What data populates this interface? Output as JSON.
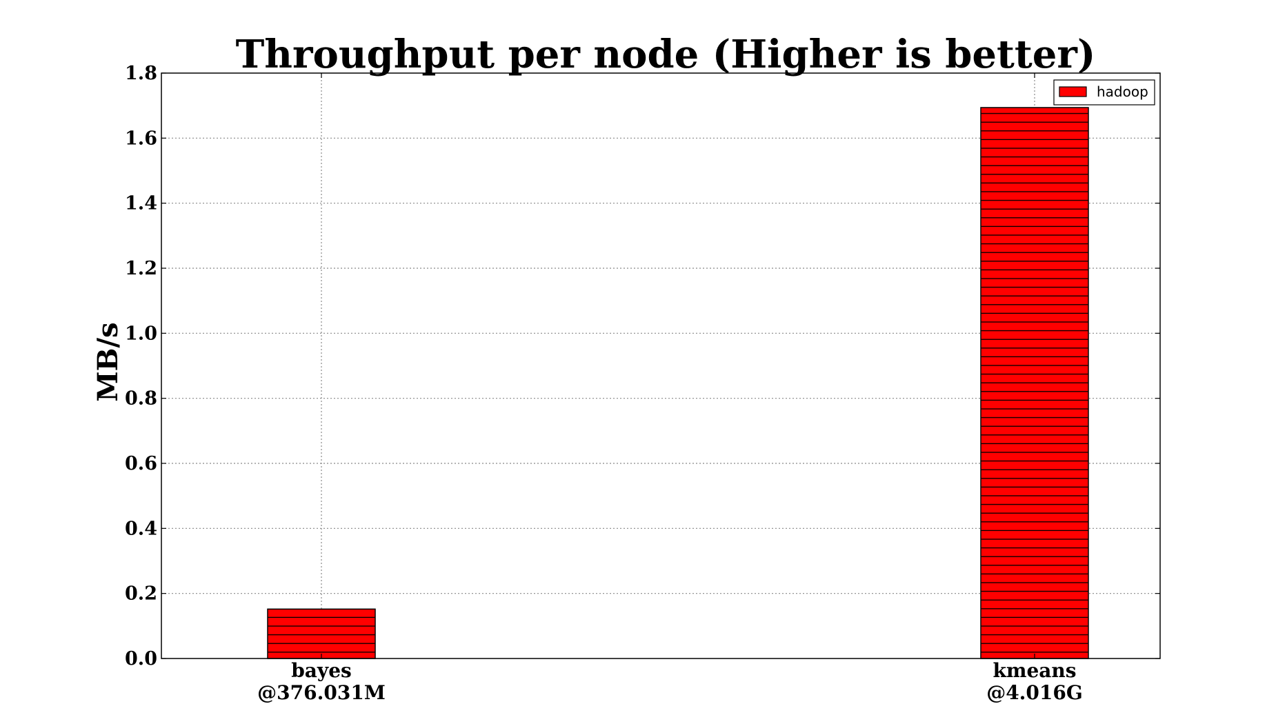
{
  "chart_data": {
    "type": "bar",
    "title": "Throughput per node (Higher is better)",
    "xlabel": "",
    "ylabel": "MB/s",
    "categories": [
      {
        "name": "bayes",
        "size": "@376.031M"
      },
      {
        "name": "kmeans",
        "size": "@4.016G"
      }
    ],
    "series": [
      {
        "name": "hadoop",
        "values": [
          0.152,
          1.694
        ],
        "color": "#ff0000",
        "hatch": "horizontal"
      }
    ],
    "ylim": [
      0.0,
      1.8
    ],
    "yticks": [
      "0.0",
      "0.2",
      "0.4",
      "0.6",
      "0.8",
      "1.0",
      "1.2",
      "1.4",
      "1.6",
      "1.8"
    ],
    "grid": true,
    "legend_position": "top-right"
  }
}
